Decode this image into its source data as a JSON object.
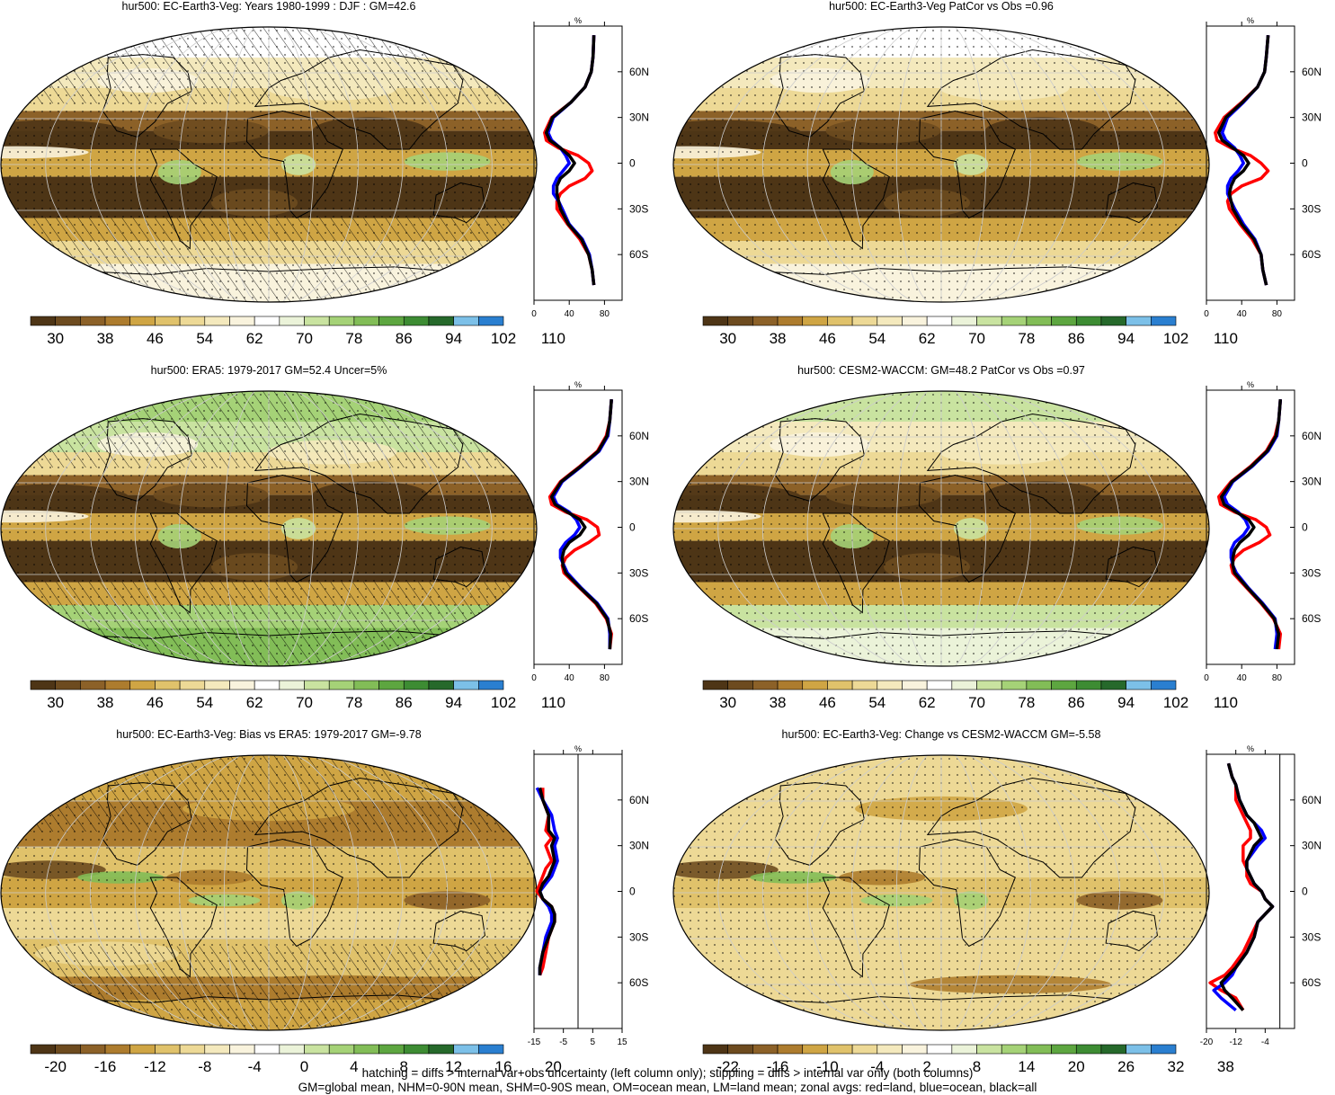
{
  "colors": {
    "abs_scale": [
      "#4e3516",
      "#6d4b1f",
      "#8c6128",
      "#ad7c2e",
      "#cfa544",
      "#e0c26b",
      "#edd996",
      "#f4e9bd",
      "#f9f3dd",
      "#ffffff",
      "#ebf3d9",
      "#c9e3a0",
      "#a5d277",
      "#82bd57",
      "#5da640",
      "#3d8c33",
      "#26692b",
      "#7cc0e8",
      "#2a7fd0"
    ],
    "diff_scale": [
      "#4e3516",
      "#6d4b1f",
      "#8c6128",
      "#ad7c2e",
      "#cfa544",
      "#e0c26b",
      "#edd996",
      "#f4e9bd",
      "#f9f3dd",
      "#ffffff",
      "#ebf3d9",
      "#c9e3a0",
      "#a5d277",
      "#82bd57",
      "#5da640",
      "#3d8c33",
      "#26692b",
      "#7cc0e8",
      "#2a7fd0"
    ],
    "land": "#ff0000",
    "ocean": "#0000ff",
    "all": "#000000"
  },
  "profile_unit": "%",
  "lat_labels": [
    "60N",
    "30N",
    "0",
    "30S",
    "60S"
  ],
  "panels": [
    {
      "id": "p1",
      "title": "hur500: EC-Earth3-Veg: Years 1980-1999 : DJF : GM=42.6",
      "kind": "abs",
      "hatched": true,
      "colorbar_labels": [
        "30",
        "38",
        "46",
        "54",
        "62",
        "70",
        "78",
        "86",
        "94",
        "102",
        "110"
      ],
      "profile_ticks": [
        "0",
        "40",
        "80"
      ],
      "profile_range": [
        0,
        100
      ],
      "zonal_profile": {
        "lat": [
          84,
          70,
          60,
          50,
          40,
          30,
          20,
          15,
          10,
          5,
          0,
          -5,
          -10,
          -15,
          -20,
          -25,
          -30,
          -40,
          -50,
          -60,
          -70,
          -80
        ],
        "land": [
          68,
          67,
          65,
          58,
          42,
          20,
          12,
          14,
          28,
          50,
          62,
          66,
          58,
          40,
          30,
          26,
          26,
          38,
          52,
          62,
          66,
          68
        ],
        "ocean": [
          68,
          67,
          65,
          58,
          42,
          22,
          16,
          20,
          30,
          36,
          40,
          33,
          26,
          22,
          22,
          28,
          32,
          40,
          55,
          63,
          66,
          68
        ],
        "all": [
          68,
          67,
          65,
          58,
          42,
          21,
          14,
          18,
          30,
          40,
          46,
          40,
          30,
          26,
          26,
          28,
          30,
          39,
          54,
          62,
          66,
          68
        ]
      }
    },
    {
      "id": "p2",
      "title": "hur500: EC-Earth3-Veg PatCor vs Obs =0.96",
      "kind": "abs",
      "hatched": false,
      "colorbar_labels": [
        "30",
        "38",
        "46",
        "54",
        "62",
        "70",
        "78",
        "86",
        "94",
        "102",
        "110"
      ],
      "profile_ticks": [
        "0",
        "40",
        "80"
      ],
      "profile_range": [
        0,
        100
      ],
      "zonal_profile": {
        "lat": [
          84,
          70,
          60,
          50,
          40,
          30,
          20,
          15,
          10,
          5,
          0,
          -5,
          -10,
          -15,
          -20,
          -25,
          -30,
          -40,
          -50,
          -60,
          -70,
          -80
        ],
        "land": [
          70,
          68,
          66,
          58,
          40,
          20,
          10,
          12,
          28,
          50,
          62,
          70,
          62,
          40,
          28,
          24,
          26,
          38,
          52,
          62,
          64,
          68
        ],
        "ocean": [
          70,
          68,
          66,
          58,
          42,
          24,
          18,
          22,
          32,
          38,
          42,
          36,
          28,
          24,
          24,
          28,
          32,
          42,
          55,
          62,
          64,
          68
        ],
        "all": [
          70,
          68,
          66,
          58,
          41,
          22,
          14,
          18,
          30,
          42,
          48,
          42,
          32,
          28,
          26,
          28,
          30,
          40,
          54,
          62,
          64,
          68
        ]
      }
    },
    {
      "id": "p3",
      "title": "hur500: ERA5: 1979-2017 GM=52.4 Uncer=5%",
      "kind": "abs",
      "hatched": true,
      "colorbar_labels": [
        "30",
        "38",
        "46",
        "54",
        "62",
        "70",
        "78",
        "86",
        "94",
        "102",
        "110"
      ],
      "profile_ticks": [
        "0",
        "40",
        "80"
      ],
      "profile_range": [
        0,
        100
      ],
      "zonal_profile": {
        "lat": [
          84,
          70,
          60,
          50,
          40,
          30,
          20,
          15,
          10,
          5,
          0,
          -5,
          -10,
          -15,
          -20,
          -25,
          -30,
          -40,
          -50,
          -60,
          -70,
          -80
        ],
        "land": [
          88,
          86,
          82,
          72,
          52,
          30,
          18,
          20,
          36,
          60,
          72,
          74,
          62,
          46,
          36,
          32,
          34,
          52,
          70,
          82,
          88,
          86
        ],
        "ocean": [
          88,
          86,
          84,
          74,
          54,
          32,
          22,
          26,
          40,
          48,
          52,
          46,
          36,
          30,
          30,
          34,
          38,
          54,
          72,
          84,
          86,
          86
        ],
        "all": [
          88,
          86,
          83,
          73,
          53,
          31,
          20,
          24,
          38,
          52,
          58,
          52,
          40,
          34,
          32,
          33,
          36,
          53,
          71,
          83,
          87,
          86
        ]
      }
    },
    {
      "id": "p4",
      "title": "hur500: CESM2-WACCM: GM=48.2 PatCor vs Obs =0.97",
      "kind": "abs",
      "hatched": false,
      "colorbar_labels": [
        "30",
        "38",
        "46",
        "54",
        "62",
        "70",
        "78",
        "86",
        "94",
        "102",
        "110"
      ],
      "profile_ticks": [
        "0",
        "40",
        "80"
      ],
      "profile_range": [
        0,
        100
      ],
      "zonal_profile": {
        "lat": [
          84,
          70,
          60,
          50,
          40,
          30,
          20,
          15,
          10,
          5,
          0,
          -5,
          -10,
          -15,
          -20,
          -25,
          -30,
          -40,
          -50,
          -60,
          -70,
          -80
        ],
        "land": [
          84,
          82,
          78,
          68,
          50,
          28,
          14,
          16,
          32,
          56,
          68,
          72,
          60,
          42,
          32,
          28,
          30,
          46,
          62,
          76,
          84,
          82
        ],
        "ocean": [
          84,
          82,
          80,
          70,
          52,
          30,
          20,
          24,
          36,
          44,
          48,
          42,
          32,
          28,
          28,
          30,
          34,
          48,
          64,
          78,
          80,
          78
        ],
        "all": [
          84,
          82,
          79,
          69,
          51,
          29,
          17,
          20,
          34,
          48,
          54,
          48,
          38,
          32,
          30,
          30,
          32,
          47,
          63,
          77,
          82,
          80
        ]
      }
    },
    {
      "id": "p5",
      "title": "hur500: EC-Earth3-Veg: Bias vs ERA5: 1979-2017 GM=-9.78",
      "kind": "diff",
      "hatched": true,
      "colorbar_labels": [
        "-20",
        "-16",
        "-12",
        "-8",
        "-4",
        "0",
        "4",
        "8",
        "12",
        "16",
        "20"
      ],
      "profile_ticks": [
        "-15",
        "-5",
        "5",
        "15"
      ],
      "profile_range": [
        -15,
        15
      ],
      "zero_line": 0,
      "zonal_profile": {
        "lat": [
          68,
          60,
          50,
          40,
          35,
          30,
          20,
          15,
          10,
          5,
          0,
          -5,
          -10,
          -15,
          -20,
          -25,
          -30,
          -40,
          -50,
          -55
        ],
        "land": [
          -12,
          -12,
          -10,
          -11,
          -9,
          -11,
          -9,
          -11,
          -12,
          -13,
          -14,
          -12,
          -9,
          -8,
          -8,
          -9,
          -10,
          -11,
          -12,
          -13
        ],
        "ocean": [
          -14,
          -12,
          -9,
          -8,
          -7,
          -8,
          -7,
          -8,
          -9,
          -11,
          -13,
          -12,
          -10,
          -9,
          -9,
          -10,
          -11,
          -12,
          -13,
          -13
        ],
        "all": [
          -13,
          -12,
          -10,
          -10,
          -8,
          -9,
          -8,
          -9,
          -10,
          -12,
          -13,
          -12,
          -9,
          -8,
          -8,
          -9,
          -10,
          -12,
          -13,
          -13
        ]
      }
    },
    {
      "id": "p6",
      "title": "hur500: EC-Earth3-Veg: Change vs CESM2-WACCM GM=-5.58",
      "kind": "diff",
      "hatched": false,
      "colorbar_labels": [
        "-22",
        "-16",
        "-10",
        "-4",
        "2",
        "8",
        "14",
        "20",
        "26",
        "32",
        "38"
      ],
      "profile_ticks": [
        "-20",
        "-12",
        "-4"
      ],
      "profile_range": [
        -20,
        4
      ],
      "zero_line": 0,
      "zonal_profile": {
        "lat": [
          84,
          75,
          70,
          60,
          50,
          45,
          40,
          35,
          30,
          20,
          15,
          10,
          5,
          0,
          -5,
          -10,
          -15,
          -20,
          -30,
          -40,
          -50,
          -55,
          -60,
          -65,
          -70,
          -78
        ],
        "land": [
          -14,
          -13,
          -12,
          -12,
          -10,
          -9,
          -8,
          -8,
          -10,
          -10,
          -9,
          -9,
          -8,
          -5,
          -4,
          -2,
          -4,
          -6,
          -8,
          -10,
          -13,
          -15,
          -19,
          -16,
          -12,
          -10
        ],
        "ocean": [
          -14,
          -13,
          -12,
          -11,
          -9,
          -7,
          -5,
          -4,
          -6,
          -9,
          -9,
          -8,
          -7,
          -5,
          -4,
          -2,
          -4,
          -6,
          -7,
          -9,
          -12,
          -13,
          -15,
          -18,
          -16,
          -12
        ],
        "all": [
          -14,
          -13,
          -12,
          -11,
          -9,
          -7,
          -6,
          -5,
          -7,
          -9,
          -9,
          -8,
          -7,
          -5,
          -4,
          -2,
          -4,
          -6,
          -7,
          -9,
          -12,
          -14,
          -16,
          -15,
          -13,
          -10
        ]
      }
    }
  ],
  "footer": {
    "line1": "hatching = diffs > internal var+obs uncertainty (left column only); stippling = diffs > internal var only (both columns)",
    "line2": "GM=global mean, NHM=0-90N mean, SHM=0-90S mean, OM=ocean mean, LM=land mean; zonal avgs: red=land, blue=ocean, black=all"
  }
}
